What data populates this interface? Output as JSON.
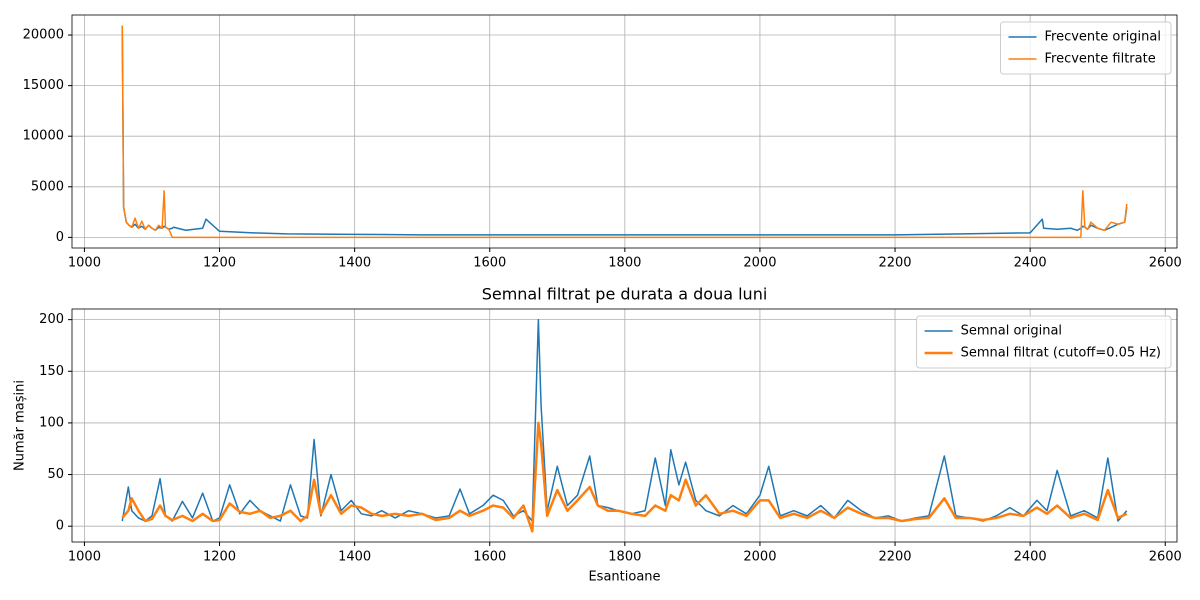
{
  "chart_data": [
    {
      "type": "line",
      "x": [
        1056,
        1058,
        1062,
        1066,
        1070,
        1075,
        1080,
        1085,
        1090,
        1095,
        1100,
        1105,
        1110,
        1115,
        1118,
        1120,
        1125,
        1130,
        1132,
        1150,
        1175,
        1180,
        1200,
        1250,
        1300,
        1400,
        1500,
        1600,
        1700,
        1800,
        1900,
        2000,
        2100,
        2200,
        2300,
        2400,
        2418,
        2420,
        2440,
        2460,
        2470,
        2475,
        2478,
        2481,
        2485,
        2490,
        2500,
        2510,
        2520,
        2530,
        2540,
        2543
      ],
      "series": [
        {
          "name": "Frecvente original",
          "color": "#1f77b4",
          "linewidth": 1.5,
          "values": [
            20930,
            3000,
            1500,
            1200,
            1000,
            1300,
            900,
            1100,
            800,
            1200,
            900,
            700,
            1000,
            900,
            1100,
            1000,
            800,
            900,
            1000,
            700,
            900,
            1800,
            600,
            450,
            350,
            300,
            250,
            250,
            250,
            250,
            250,
            250,
            250,
            250,
            350,
            450,
            1800,
            900,
            800,
            900,
            700,
            900,
            1100,
            1000,
            800,
            1200,
            900,
            700,
            1000,
            1300,
            1500,
            3000
          ]
        },
        {
          "name": "Frecvente filtrate",
          "color": "#ff7f0e",
          "linewidth": 1.5,
          "values": [
            20930,
            3000,
            1500,
            1200,
            1000,
            1900,
            900,
            1600,
            800,
            1200,
            900,
            700,
            1200,
            900,
            4600,
            1000,
            800,
            0,
            0,
            0,
            0,
            0,
            0,
            0,
            0,
            0,
            0,
            0,
            0,
            0,
            0,
            0,
            0,
            0,
            0,
            0,
            0,
            0,
            0,
            0,
            0,
            0,
            4600,
            1000,
            800,
            1500,
            900,
            700,
            1500,
            1300,
            1500,
            3300
          ]
        }
      ],
      "xlim": [
        981.6,
        2617.4
      ],
      "ylim": [
        -1050,
        21980
      ],
      "xticks": [
        1000,
        1200,
        1400,
        1600,
        1800,
        2000,
        2200,
        2400,
        2600
      ],
      "yticks": [
        0,
        5000,
        10000,
        15000,
        20000
      ],
      "grid": true,
      "legend": "upper right"
    },
    {
      "type": "line",
      "title": "Semnal filtrat pe durata a doua luni",
      "xlabel": "Esantioane",
      "ylabel": "Număr mașini",
      "x": [
        1056,
        1065,
        1070,
        1080,
        1090,
        1100,
        1112,
        1120,
        1130,
        1145,
        1160,
        1175,
        1190,
        1200,
        1215,
        1230,
        1245,
        1260,
        1275,
        1290,
        1305,
        1320,
        1330,
        1340,
        1350,
        1365,
        1380,
        1395,
        1410,
        1425,
        1440,
        1460,
        1480,
        1500,
        1520,
        1540,
        1556,
        1570,
        1590,
        1605,
        1620,
        1635,
        1650,
        1663,
        1672,
        1676,
        1685,
        1700,
        1715,
        1730,
        1748,
        1760,
        1775,
        1790,
        1810,
        1830,
        1845,
        1860,
        1868,
        1880,
        1890,
        1905,
        1920,
        1940,
        1960,
        1980,
        2000,
        2013,
        2030,
        2050,
        2070,
        2090,
        2110,
        2130,
        2150,
        2170,
        2190,
        2210,
        2230,
        2250,
        2273,
        2290,
        2310,
        2330,
        2350,
        2370,
        2390,
        2410,
        2425,
        2440,
        2460,
        2480,
        2500,
        2515,
        2530,
        2543
      ],
      "series": [
        {
          "name": "Semnal original",
          "color": "#1f77b4",
          "linewidth": 1.5,
          "values": [
            5,
            38,
            15,
            8,
            5,
            10,
            46,
            10,
            5,
            24,
            8,
            32,
            5,
            8,
            40,
            12,
            25,
            15,
            10,
            5,
            40,
            10,
            8,
            84,
            10,
            50,
            15,
            25,
            12,
            10,
            15,
            8,
            15,
            12,
            8,
            10,
            36,
            12,
            20,
            30,
            25,
            10,
            15,
            5,
            200,
            117,
            15,
            58,
            20,
            30,
            68,
            20,
            18,
            15,
            12,
            15,
            66,
            20,
            74,
            40,
            62,
            25,
            15,
            10,
            20,
            12,
            30,
            58,
            10,
            15,
            10,
            20,
            8,
            25,
            15,
            8,
            10,
            5,
            8,
            10,
            68,
            10,
            8,
            5,
            10,
            18,
            10,
            25,
            15,
            54,
            10,
            15,
            8,
            66,
            5,
            15
          ]
        },
        {
          "name": "Semnal filtrat (cutoff=0.05 Hz)",
          "color": "#ff7f0e",
          "linewidth": 2.5,
          "values": [
            8,
            15,
            27,
            15,
            5,
            7,
            20,
            10,
            6,
            10,
            5,
            12,
            5,
            6,
            22,
            14,
            12,
            15,
            8,
            10,
            15,
            5,
            10,
            45,
            12,
            30,
            12,
            20,
            18,
            12,
            10,
            12,
            10,
            12,
            6,
            8,
            15,
            10,
            15,
            20,
            18,
            8,
            20,
            -5,
            100,
            80,
            10,
            35,
            15,
            25,
            38,
            20,
            15,
            15,
            12,
            10,
            20,
            15,
            30,
            25,
            45,
            20,
            30,
            12,
            15,
            10,
            25,
            25,
            8,
            12,
            8,
            15,
            8,
            18,
            12,
            8,
            8,
            5,
            7,
            8,
            27,
            8,
            8,
            6,
            8,
            12,
            10,
            18,
            12,
            20,
            8,
            12,
            6,
            35,
            8,
            12
          ]
        }
      ],
      "xlim": [
        981.6,
        2617.4
      ],
      "ylim": [
        -15.3,
        210.3
      ],
      "xticks": [
        1000,
        1200,
        1400,
        1600,
        1800,
        2000,
        2200,
        2400,
        2600
      ],
      "yticks": [
        0,
        50,
        100,
        150,
        200
      ],
      "grid": true,
      "legend": "upper right"
    }
  ]
}
